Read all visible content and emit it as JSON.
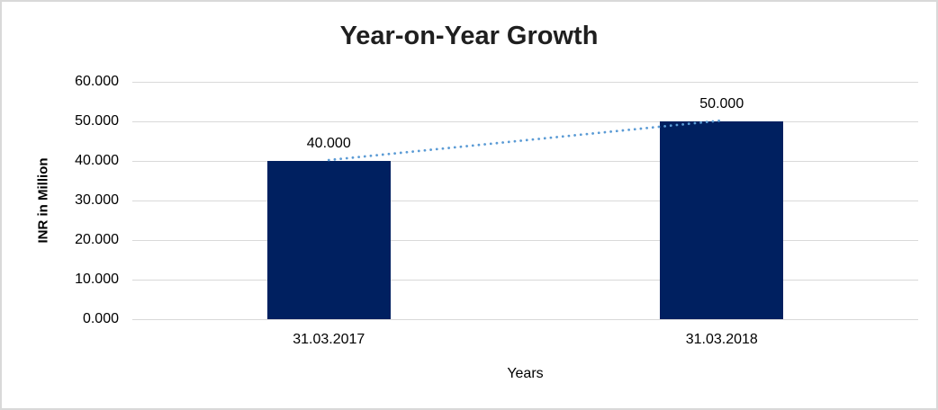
{
  "chart_data": {
    "type": "bar",
    "title": "Year-on-Year Growth",
    "xlabel": "Years",
    "ylabel": "INR in Million",
    "categories": [
      "31.03.2017",
      "31.03.2018"
    ],
    "series": [
      {
        "name": "INR in Million",
        "type": "bar",
        "values": [
          40.0,
          50.0
        ]
      },
      {
        "name": "trend",
        "type": "dotted-line",
        "values": [
          40.0,
          50.0
        ]
      }
    ],
    "data_labels": [
      "40.000",
      "50.000"
    ],
    "yticks": [
      "0.000",
      "10.000",
      "20.000",
      "30.000",
      "40.000",
      "50.000",
      "60.000"
    ],
    "ylim": [
      0,
      60
    ],
    "ytick_step": 10,
    "grid": true,
    "legend": "none",
    "colors": {
      "bar": "#002060",
      "trend_line": "#5b9bd5",
      "gridline": "#d9d9d9",
      "frame_border": "#d9d9d9",
      "title_text": "#1f1f1f",
      "axis_text": "#000000"
    }
  }
}
